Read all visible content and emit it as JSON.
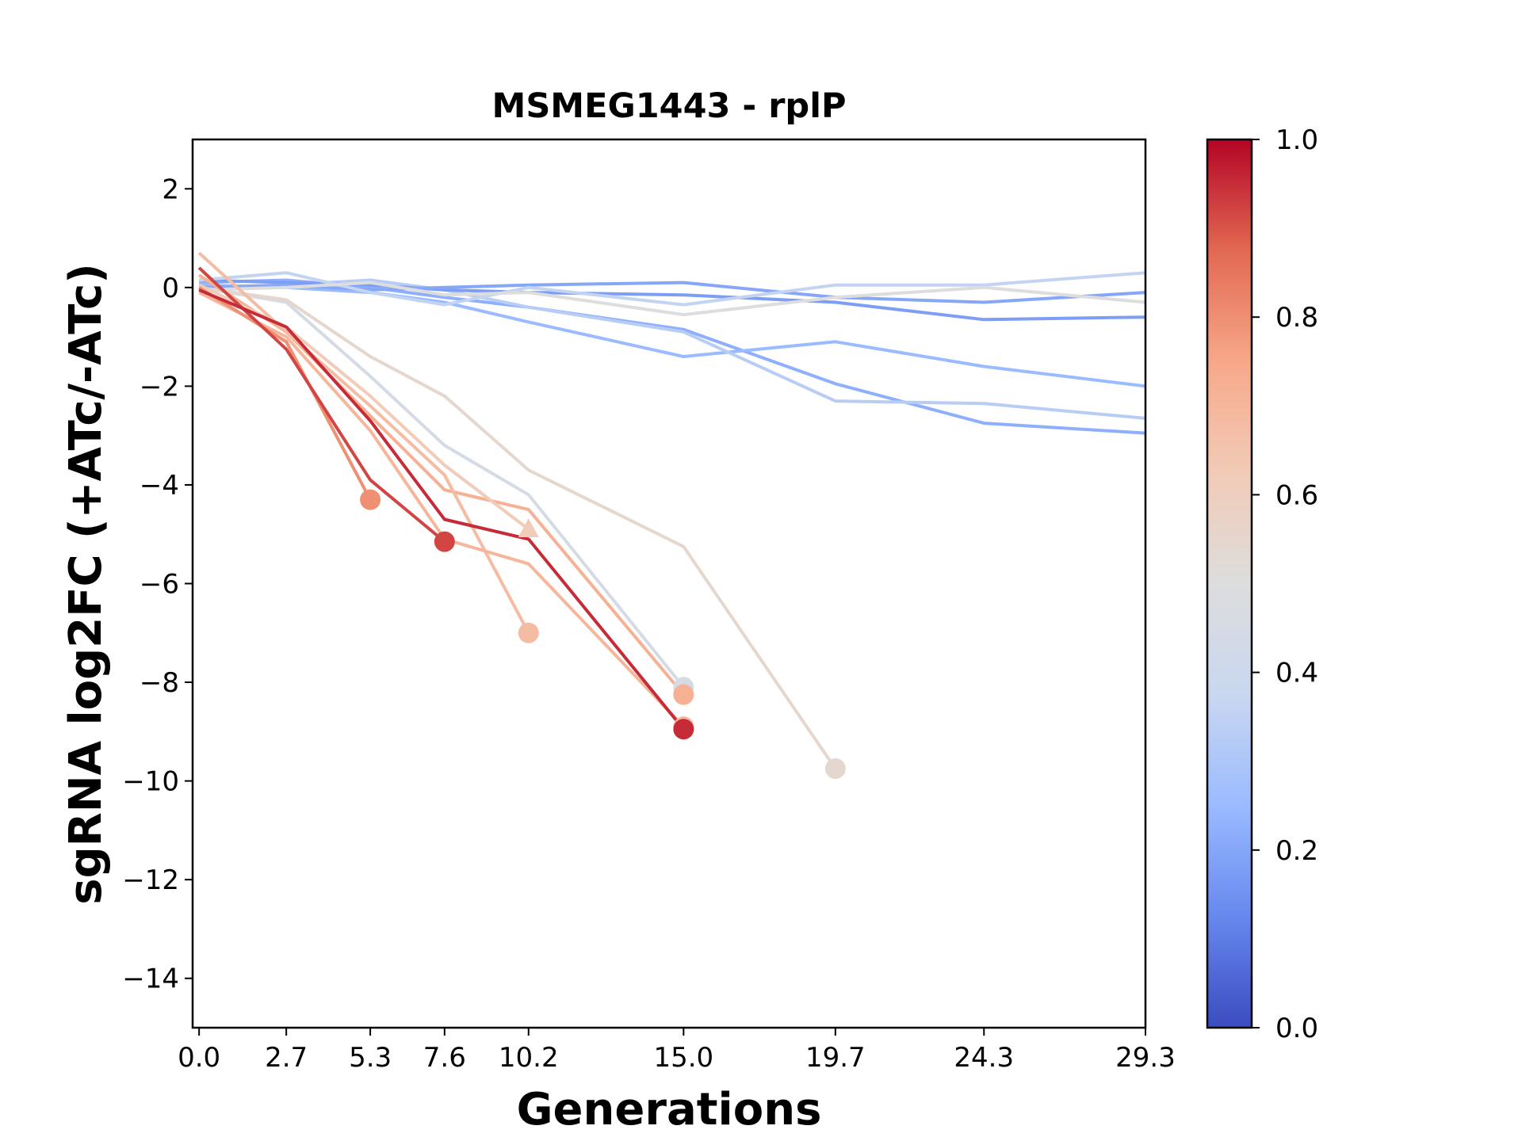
{
  "chart_data": {
    "type": "line",
    "title": "MSMEG1443 - rplP",
    "xlabel": "Generations",
    "ylabel": "sgRNA log2FC (+ATc/-ATc)",
    "x_ticks": [
      "0.0",
      "2.7",
      "5.3",
      "7.6",
      "10.2",
      "15.0",
      "19.7",
      "24.3",
      "29.3"
    ],
    "y_ticks": [
      "2",
      "0",
      "−2",
      "−4",
      "−6",
      "−8",
      "−10",
      "−12",
      "−14"
    ],
    "xlim": [
      -0.2,
      29.3
    ],
    "ylim": [
      -15,
      3
    ],
    "grid": false,
    "colormap": {
      "name": "coolwarm",
      "range": [
        0,
        1
      ],
      "tick_labels": [
        "0.0",
        "0.2",
        "0.4",
        "0.6",
        "0.8",
        "1.0"
      ],
      "stops": [
        "#3b4cc0",
        "#6788ee",
        "#9abbff",
        "#c9d7f0",
        "#dddddd",
        "#f2cbb7",
        "#f7a889",
        "#e26952",
        "#b40426"
      ]
    },
    "series": [
      {
        "color_value": 0.22,
        "x": [
          0.0,
          2.7,
          5.3,
          7.6,
          10.2,
          15.0,
          19.7,
          24.3,
          29.3
        ],
        "y": [
          0.1,
          0.15,
          0.0,
          -0.2,
          -0.4,
          -0.85,
          -1.95,
          -2.75,
          -2.95
        ]
      },
      {
        "color_value": 0.25,
        "x": [
          0.0,
          2.7,
          5.3,
          7.6,
          10.2,
          15.0,
          19.7,
          24.3,
          29.3
        ],
        "y": [
          0.05,
          0.0,
          -0.1,
          -0.3,
          -0.7,
          -1.4,
          -1.1,
          -1.6,
          -2.0
        ]
      },
      {
        "color_value": 0.33,
        "x": [
          0.0,
          2.7,
          5.3,
          7.6,
          10.2,
          15.0,
          19.7,
          24.3,
          29.3
        ],
        "y": [
          0.0,
          0.05,
          0.15,
          -0.05,
          -0.4,
          -0.9,
          -2.3,
          -2.35,
          -2.65
        ]
      },
      {
        "color_value": 0.18,
        "x": [
          0.0,
          2.7,
          5.3,
          7.6,
          10.2,
          15.0,
          19.7,
          24.3,
          29.3
        ],
        "y": [
          0.15,
          0.1,
          0.05,
          -0.05,
          -0.1,
          -0.15,
          -0.3,
          -0.65,
          -0.6
        ]
      },
      {
        "color_value": 0.2,
        "x": [
          0.0,
          2.7,
          5.3,
          7.6,
          10.2,
          15.0,
          19.7,
          24.3,
          29.3
        ],
        "y": [
          0.0,
          0.05,
          -0.05,
          0.0,
          0.05,
          0.1,
          -0.2,
          -0.3,
          -0.1
        ]
      },
      {
        "color_value": 0.36,
        "x": [
          0.0,
          2.7,
          5.3,
          7.6,
          10.2,
          15.0,
          19.7,
          24.3,
          29.3
        ],
        "y": [
          0.15,
          0.3,
          -0.1,
          -0.35,
          0.0,
          -0.35,
          0.05,
          0.05,
          0.3
        ]
      },
      {
        "color_value": 0.5,
        "x": [
          0.0,
          2.7,
          5.3,
          7.6,
          10.2,
          15.0,
          19.7,
          24.3,
          29.3
        ],
        "y": [
          -0.05,
          0.0,
          0.1,
          -0.15,
          -0.1,
          -0.55,
          -0.2,
          0.0,
          -0.3
        ]
      },
      {
        "color_value": 0.45,
        "x": [
          0.0,
          2.7,
          5.3,
          7.6,
          10.2,
          15.0
        ],
        "y": [
          0.0,
          -0.3,
          -1.8,
          -3.2,
          -4.2,
          -8.1
        ],
        "end_marker": "circle"
      },
      {
        "color_value": 0.55,
        "x": [
          0.0,
          2.7,
          5.3,
          7.6,
          10.2,
          15.0,
          19.7
        ],
        "y": [
          0.0,
          -0.25,
          -1.4,
          -2.2,
          -3.7,
          -5.25,
          -9.75
        ],
        "end_marker": "circle"
      },
      {
        "color_value": 0.72,
        "x": [
          0.0,
          2.7,
          5.3,
          7.6,
          10.2,
          15.0
        ],
        "y": [
          0.25,
          -0.9,
          -2.6,
          -4.1,
          -4.5,
          -8.25
        ],
        "end_marker": "circle"
      },
      {
        "color_value": 0.68,
        "x": [
          0.0,
          2.7,
          5.3,
          7.6,
          10.2
        ],
        "y": [
          0.7,
          -0.9,
          -2.4,
          -3.8,
          -7.0
        ],
        "end_marker": "circle"
      },
      {
        "color_value": 0.62,
        "x": [
          0.0,
          2.7,
          5.3,
          7.6,
          10.2
        ],
        "y": [
          0.05,
          -0.8,
          -2.2,
          -3.6,
          -4.9
        ],
        "end_marker": "triangle"
      },
      {
        "color_value": 0.7,
        "x": [
          0.0,
          2.7,
          5.3,
          7.6,
          10.2,
          15.0
        ],
        "y": [
          -0.1,
          -1.0,
          -2.9,
          -5.1,
          -5.6,
          -8.9
        ],
        "end_marker": "circle"
      },
      {
        "color_value": 0.8,
        "x": [
          0.0,
          2.7,
          5.3
        ],
        "y": [
          0.0,
          -1.1,
          -4.3
        ],
        "end_marker": "circle"
      },
      {
        "color_value": 0.92,
        "x": [
          0.0,
          2.7,
          5.3,
          7.6
        ],
        "y": [
          0.4,
          -1.25,
          -3.9,
          -5.15
        ],
        "end_marker": "circle"
      },
      {
        "color_value": 0.95,
        "x": [
          0.0,
          2.7,
          5.3,
          7.6,
          10.2,
          15.0
        ],
        "y": [
          -0.05,
          -0.8,
          -2.7,
          -4.7,
          -5.1,
          -8.95
        ],
        "end_marker": "circle"
      }
    ]
  }
}
